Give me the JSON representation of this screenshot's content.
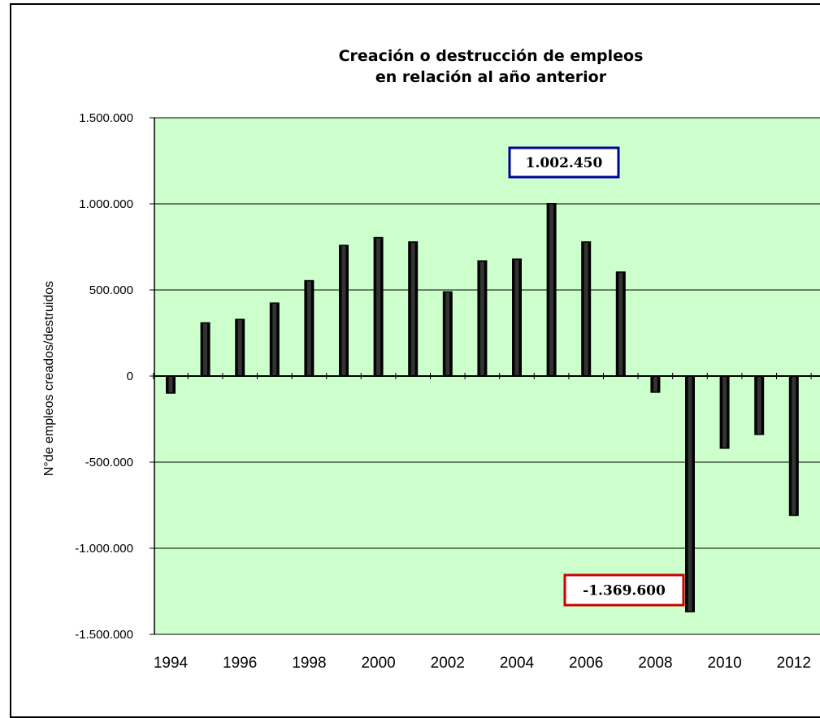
{
  "chart_data": {
    "type": "bar",
    "title_line1": "Creación o destrucción de empleos",
    "title_line2": "en relación al año anterior",
    "ylabel": "N°de empleos creados/destruidos",
    "xlabel": "",
    "ylim": [
      -1500000,
      1500000
    ],
    "yticks": [
      1500000,
      1000000,
      500000,
      0,
      -500000,
      -1000000,
      -1500000
    ],
    "ytick_labels": [
      "1.500.000",
      "1.000.000",
      "500.000",
      "0",
      "-500.000",
      "-1.000.000",
      "-1.500.000"
    ],
    "xtick_labels": [
      "1994",
      "1996",
      "1998",
      "2000",
      "2002",
      "2004",
      "2006",
      "2008",
      "2010",
      "2012"
    ],
    "categories": [
      "1994",
      "1995",
      "1996",
      "1997",
      "1998",
      "1999",
      "2000",
      "2001",
      "2002",
      "2003",
      "2004",
      "2005",
      "2006",
      "2007",
      "2008",
      "2009",
      "2010",
      "2011",
      "2012"
    ],
    "values": [
      -100000,
      310000,
      330000,
      425000,
      555000,
      760000,
      805000,
      780000,
      490000,
      670000,
      680000,
      1002450,
      780000,
      605000,
      -95000,
      -1369600,
      -420000,
      -340000,
      -810000
    ],
    "grid": true,
    "plot_background": "#ccffcc",
    "bar_color": "#000000",
    "annotations": [
      {
        "text": "1.002.450",
        "category": "2005",
        "border_color": "#000099"
      },
      {
        "text": "-1.369.600",
        "category": "2009",
        "border_color": "#cc0000"
      }
    ]
  }
}
